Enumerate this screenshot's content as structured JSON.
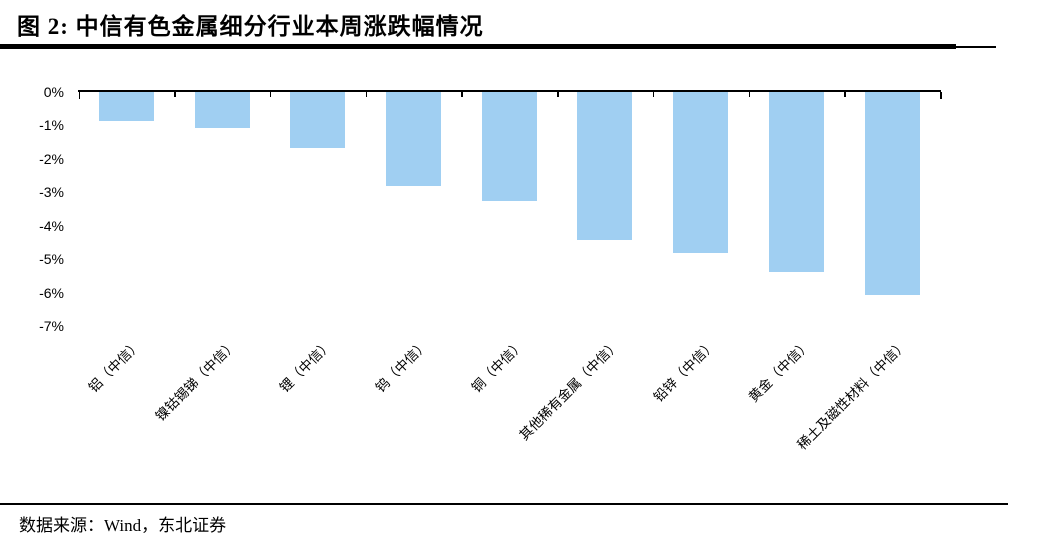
{
  "header": {
    "title": "图 2: 中信有色金属细分行业本周涨跌幅情况"
  },
  "footer": {
    "source": "数据来源：Wind，东北证券"
  },
  "chart_data": {
    "type": "bar",
    "title": "中信有色金属细分行业本周涨跌幅情况",
    "categories": [
      "铝（中信）",
      "镍钴锡锑（中信）",
      "锂（中信）",
      "钨（中信）",
      "铜（中信）",
      "其他稀有金属（中信）",
      "铅锌（中信）",
      "黄金（中信）",
      "稀土及磁性材料（中信）"
    ],
    "values": [
      -0.9,
      -1.1,
      -1.7,
      -2.85,
      -3.3,
      -4.45,
      -4.85,
      -5.4,
      -6.1
    ],
    "unit": "%",
    "xlabel": "",
    "ylabel": "",
    "ylim": [
      -7,
      0
    ],
    "ytick_labels": [
      "0%",
      "-1%",
      "-2%",
      "-3%",
      "-4%",
      "-5%",
      "-6%",
      "-7%"
    ],
    "bar_color": "#A0CFF2",
    "axis_color": "#000000",
    "grid": false,
    "legend": false,
    "x_label_rotation_deg": 45
  }
}
